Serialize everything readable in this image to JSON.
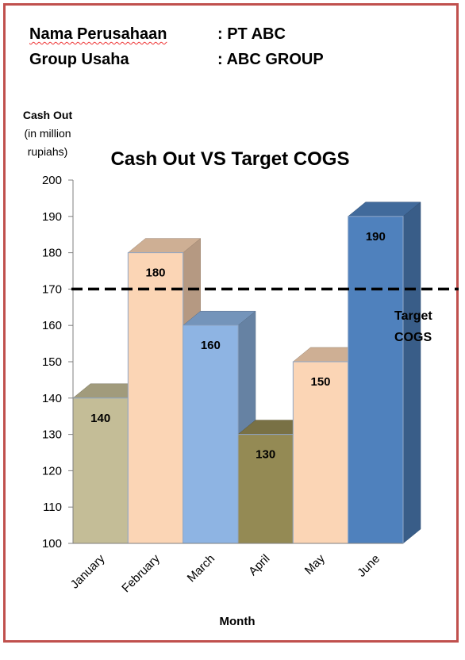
{
  "header": {
    "company_label": "Nama Perusahaan",
    "company_value": ": PT ABC",
    "group_label": "Group Usaha",
    "group_value": ": ABC GROUP"
  },
  "chart_data": {
    "type": "bar",
    "title": "Cash Out VS Target COGS",
    "ylabel_lines": [
      "Cash Out",
      "(in million",
      "rupiahs)"
    ],
    "xlabel": "Month",
    "ylim": [
      100,
      200
    ],
    "yticks": [
      100,
      110,
      120,
      130,
      140,
      150,
      160,
      170,
      180,
      190,
      200
    ],
    "grid": false,
    "style": "3d-column",
    "categories": [
      "January",
      "February",
      "March",
      "April",
      "May",
      "June"
    ],
    "values": [
      140,
      180,
      160,
      130,
      150,
      190
    ],
    "data_labels": [
      "140",
      "180",
      "160",
      "130",
      "150",
      "190"
    ],
    "bar_colors": [
      "#c4bd97",
      "#fbd5b5",
      "#8eb4e3",
      "#948a54",
      "#fbd5b5",
      "#4f81bd"
    ],
    "target_line": {
      "value": 170,
      "label_lines": [
        "Target",
        "COGS"
      ],
      "style": "dashed",
      "color": "#000000"
    }
  }
}
